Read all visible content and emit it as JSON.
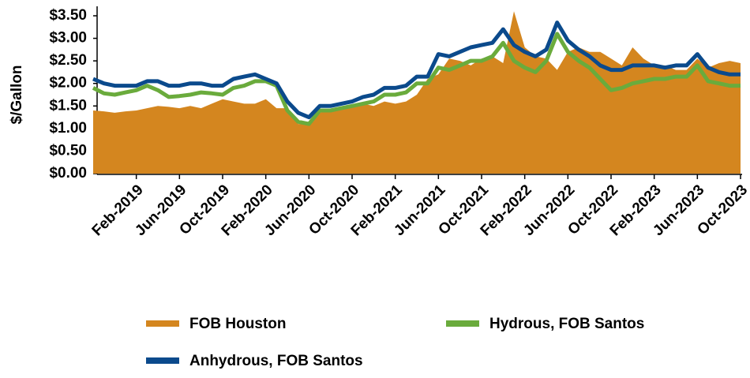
{
  "chart_data": {
    "type": "line",
    "ylabel": "$/Gallon",
    "categories": [
      null,
      null,
      null,
      null,
      "Feb-2019",
      null,
      null,
      null,
      "Jun-2019",
      null,
      null,
      null,
      "Oct-2019",
      null,
      null,
      null,
      "Feb-2020",
      null,
      null,
      null,
      "Jun-2020",
      null,
      null,
      null,
      "Oct-2020",
      null,
      null,
      null,
      "Feb-2021",
      null,
      null,
      null,
      "Jun-2021",
      null,
      null,
      null,
      "Oct-2021",
      null,
      null,
      null,
      "Feb-2022",
      null,
      null,
      null,
      "Jun-2022",
      null,
      null,
      null,
      "Oct-2022",
      null,
      null,
      null,
      "Feb-2023",
      null,
      null,
      null,
      "Jun-2023",
      null,
      null,
      null,
      "Oct-2023"
    ],
    "series": [
      {
        "name": "FOB Houston",
        "color": "#d4861f",
        "fill": true,
        "values": [
          1.4,
          1.38,
          1.35,
          1.38,
          1.4,
          1.45,
          1.5,
          1.48,
          1.45,
          1.5,
          1.45,
          1.55,
          1.65,
          1.6,
          1.55,
          1.55,
          1.65,
          1.45,
          1.45,
          1.1,
          1.1,
          1.35,
          1.4,
          1.45,
          1.5,
          1.55,
          1.5,
          1.6,
          1.55,
          1.6,
          1.75,
          2.1,
          2.2,
          2.55,
          2.5,
          2.4,
          2.55,
          2.6,
          2.45,
          3.6,
          2.8,
          2.6,
          2.55,
          2.3,
          2.7,
          2.8,
          2.7,
          2.7,
          2.55,
          2.4,
          2.8,
          2.55,
          2.4,
          2.4,
          2.3,
          2.3,
          2.55,
          2.35,
          2.45,
          2.5,
          2.45
        ]
      },
      {
        "name": "Hydrous, FOB Santos",
        "color": "#6aab3c",
        "values": [
          1.9,
          1.78,
          1.75,
          1.8,
          1.85,
          1.95,
          1.85,
          1.7,
          1.72,
          1.75,
          1.8,
          1.78,
          1.75,
          1.9,
          1.95,
          2.05,
          2.05,
          1.95,
          1.4,
          1.15,
          1.1,
          1.4,
          1.4,
          1.45,
          1.5,
          1.55,
          1.6,
          1.75,
          1.75,
          1.8,
          2.0,
          2.0,
          2.35,
          2.3,
          2.4,
          2.5,
          2.5,
          2.6,
          2.9,
          2.5,
          2.35,
          2.25,
          2.5,
          3.1,
          2.7,
          2.5,
          2.35,
          2.1,
          1.85,
          1.9,
          2.0,
          2.05,
          2.1,
          2.1,
          2.15,
          2.15,
          2.4,
          2.05,
          2.0,
          1.95,
          1.95
        ]
      },
      {
        "name": "Anhydrous, FOB Santos",
        "color": "#0b4a8c",
        "values": [
          2.1,
          2.0,
          1.95,
          1.95,
          1.95,
          2.05,
          2.05,
          1.95,
          1.95,
          2.0,
          2.0,
          1.95,
          1.95,
          2.1,
          2.15,
          2.2,
          2.1,
          2.0,
          1.6,
          1.35,
          1.25,
          1.5,
          1.5,
          1.55,
          1.6,
          1.7,
          1.75,
          1.9,
          1.9,
          1.95,
          2.15,
          2.15,
          2.65,
          2.6,
          2.7,
          2.8,
          2.85,
          2.9,
          3.2,
          2.85,
          2.7,
          2.6,
          2.75,
          3.35,
          2.95,
          2.75,
          2.6,
          2.4,
          2.3,
          2.3,
          2.4,
          2.4,
          2.4,
          2.35,
          2.4,
          2.4,
          2.65,
          2.35,
          2.25,
          2.2,
          2.2
        ]
      }
    ],
    "ylim": [
      0,
      3.5
    ],
    "yticks": [
      {
        "value": 0,
        "label": "$0.00"
      },
      {
        "value": 0.5,
        "label": "$0.50"
      },
      {
        "value": 1,
        "label": "$1.00"
      },
      {
        "value": 1.5,
        "label": "$1.50"
      },
      {
        "value": 2,
        "label": "$2.00"
      },
      {
        "value": 2.5,
        "label": "$2.50"
      },
      {
        "value": 3,
        "label": "$3.00"
      },
      {
        "value": 3.5,
        "label": "$3.50"
      }
    ],
    "grid": false,
    "legend": "bottom"
  }
}
